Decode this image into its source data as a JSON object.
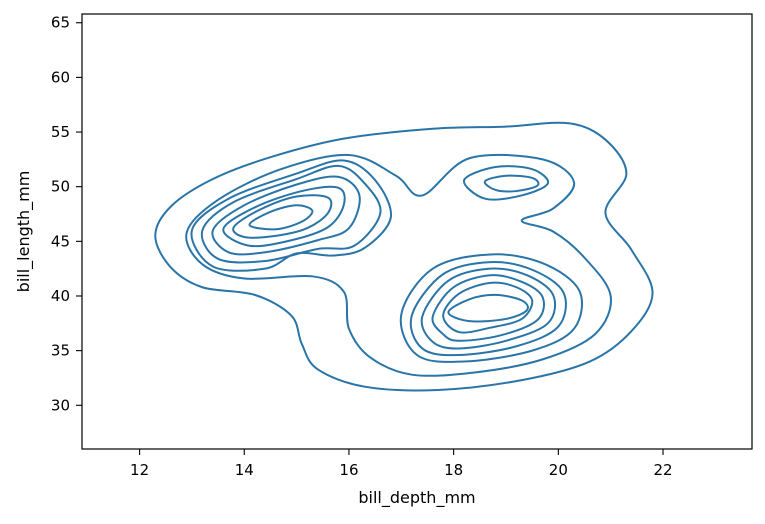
{
  "chart_data": {
    "type": "contour",
    "title": "",
    "xlabel": "bill_depth_mm",
    "ylabel": "bill_length_mm",
    "xlim": [
      10.9,
      23.7
    ],
    "ylim": [
      26.0,
      65.8
    ],
    "xticks": [
      12,
      14,
      16,
      18,
      20,
      22
    ],
    "yticks": [
      30,
      35,
      40,
      45,
      50,
      55,
      60,
      65
    ],
    "grid": false,
    "legend": "none",
    "line_color": "#2a75a8",
    "contours": [
      {
        "level": 1,
        "points": [
          [
            12.3,
            45.5
          ],
          [
            12.6,
            48.2
          ],
          [
            13.4,
            50.7
          ],
          [
            14.5,
            52.7
          ],
          [
            15.9,
            54.4
          ],
          [
            17.6,
            55.3
          ],
          [
            19.0,
            55.5
          ],
          [
            20.2,
            55.8
          ],
          [
            20.9,
            54.3
          ],
          [
            21.3,
            51.2
          ],
          [
            20.9,
            47.6
          ],
          [
            21.4,
            44.2
          ],
          [
            21.8,
            40.3
          ],
          [
            21.4,
            36.8
          ],
          [
            20.6,
            34.0
          ],
          [
            19.3,
            32.3
          ],
          [
            17.7,
            31.4
          ],
          [
            16.3,
            31.7
          ],
          [
            15.4,
            33.3
          ],
          [
            15.1,
            35.6
          ],
          [
            14.9,
            38.2
          ],
          [
            14.2,
            40.1
          ],
          [
            13.2,
            40.8
          ],
          [
            12.6,
            42.6
          ]
        ]
      },
      {
        "level": 2,
        "points": [
          [
            12.9,
            45.8
          ],
          [
            13.5,
            48.8
          ],
          [
            14.7,
            51.6
          ],
          [
            16.0,
            52.9
          ],
          [
            16.9,
            51.0
          ],
          [
            17.4,
            49.2
          ],
          [
            18.3,
            52.6
          ],
          [
            19.7,
            52.5
          ],
          [
            20.3,
            50.4
          ],
          [
            19.9,
            48.0
          ],
          [
            19.3,
            46.9
          ],
          [
            19.9,
            45.9
          ],
          [
            20.5,
            43.5
          ],
          [
            21.0,
            40.0
          ],
          [
            20.7,
            36.5
          ],
          [
            19.7,
            34.2
          ],
          [
            18.4,
            33.0
          ],
          [
            17.2,
            32.8
          ],
          [
            16.4,
            34.4
          ],
          [
            16.0,
            37.0
          ],
          [
            15.9,
            40.4
          ],
          [
            15.3,
            41.8
          ],
          [
            14.0,
            41.6
          ],
          [
            13.2,
            42.9
          ]
        ]
      },
      {
        "level": 3,
        "points": [
          [
            13.0,
            46.0
          ],
          [
            13.7,
            48.9
          ],
          [
            15.0,
            51.2
          ],
          [
            15.9,
            52.4
          ],
          [
            16.5,
            50.6
          ],
          [
            16.8,
            47.2
          ],
          [
            16.3,
            44.4
          ],
          [
            15.7,
            43.7
          ],
          [
            15.0,
            43.9
          ],
          [
            14.4,
            42.5
          ],
          [
            13.4,
            42.7
          ]
        ]
      },
      {
        "level": 3,
        "points": [
          [
            18.2,
            50.6
          ],
          [
            18.8,
            51.8
          ],
          [
            19.5,
            51.6
          ],
          [
            19.8,
            50.3
          ],
          [
            19.3,
            49.2
          ],
          [
            18.6,
            48.9
          ]
        ]
      },
      {
        "level": 3,
        "points": [
          [
            17.0,
            38.3
          ],
          [
            17.6,
            42.5
          ],
          [
            18.7,
            43.8
          ],
          [
            19.7,
            43.0
          ],
          [
            20.4,
            40.5
          ],
          [
            20.3,
            37.0
          ],
          [
            19.5,
            35.0
          ],
          [
            18.2,
            34.0
          ],
          [
            17.3,
            34.6
          ]
        ]
      },
      {
        "level": 4,
        "points": [
          [
            13.2,
            46.0
          ],
          [
            13.8,
            48.6
          ],
          [
            15.0,
            50.7
          ],
          [
            15.8,
            51.9
          ],
          [
            16.3,
            50.3
          ],
          [
            16.6,
            47.6
          ],
          [
            16.1,
            44.6
          ],
          [
            15.4,
            44.3
          ],
          [
            14.4,
            43.2
          ],
          [
            13.5,
            43.4
          ]
        ]
      },
      {
        "level": 4,
        "points": [
          [
            18.6,
            50.5
          ],
          [
            19.0,
            51.0
          ],
          [
            19.5,
            50.8
          ],
          [
            19.6,
            50.1
          ],
          [
            19.2,
            49.6
          ],
          [
            18.8,
            49.7
          ]
        ]
      },
      {
        "level": 4,
        "points": [
          [
            17.2,
            38.2
          ],
          [
            17.8,
            42.0
          ],
          [
            18.7,
            43.1
          ],
          [
            19.5,
            42.4
          ],
          [
            20.1,
            40.3
          ],
          [
            20.0,
            37.2
          ],
          [
            19.2,
            35.4
          ],
          [
            18.1,
            34.6
          ],
          [
            17.4,
            35.2
          ]
        ]
      },
      {
        "level": 5,
        "points": [
          [
            13.4,
            46.0
          ],
          [
            14.0,
            48.3
          ],
          [
            15.0,
            50.2
          ],
          [
            15.8,
            50.9
          ],
          [
            16.2,
            49.2
          ],
          [
            16.0,
            46.2
          ],
          [
            15.4,
            45.1
          ],
          [
            14.4,
            44.0
          ],
          [
            13.7,
            44.0
          ]
        ]
      },
      {
        "level": 5,
        "points": [
          [
            17.4,
            38.1
          ],
          [
            17.9,
            41.4
          ],
          [
            18.7,
            42.5
          ],
          [
            19.4,
            41.9
          ],
          [
            19.9,
            40.1
          ],
          [
            19.8,
            37.5
          ],
          [
            19.0,
            35.9
          ],
          [
            18.1,
            35.2
          ],
          [
            17.6,
            35.8
          ]
        ]
      },
      {
        "level": 6,
        "points": [
          [
            13.6,
            46.1
          ],
          [
            14.2,
            48.1
          ],
          [
            15.1,
            49.6
          ],
          [
            15.8,
            49.9
          ],
          [
            15.9,
            48.3
          ],
          [
            15.6,
            46.3
          ],
          [
            14.9,
            45.1
          ],
          [
            14.1,
            44.6
          ]
        ]
      },
      {
        "level": 6,
        "points": [
          [
            17.6,
            38.1
          ],
          [
            18.0,
            40.8
          ],
          [
            18.7,
            41.9
          ],
          [
            19.3,
            41.3
          ],
          [
            19.7,
            39.9
          ],
          [
            19.6,
            37.8
          ],
          [
            18.9,
            36.4
          ],
          [
            18.1,
            35.9
          ],
          [
            17.8,
            36.5
          ]
        ]
      },
      {
        "level": 7,
        "points": [
          [
            13.8,
            46.3
          ],
          [
            14.3,
            47.9
          ],
          [
            15.0,
            49.1
          ],
          [
            15.6,
            49.0
          ],
          [
            15.6,
            47.6
          ],
          [
            15.2,
            46.2
          ],
          [
            14.6,
            45.5
          ],
          [
            14.0,
            45.4
          ]
        ]
      },
      {
        "level": 7,
        "points": [
          [
            17.8,
            38.2
          ],
          [
            18.1,
            40.2
          ],
          [
            18.7,
            41.2
          ],
          [
            19.2,
            40.8
          ],
          [
            19.5,
            39.6
          ],
          [
            19.3,
            37.9
          ],
          [
            18.7,
            37.1
          ],
          [
            18.1,
            36.7
          ]
        ]
      },
      {
        "level": 8,
        "points": [
          [
            14.1,
            46.5
          ],
          [
            14.5,
            47.7
          ],
          [
            15.0,
            48.3
          ],
          [
            15.3,
            47.8
          ],
          [
            15.1,
            46.8
          ],
          [
            14.6,
            46.1
          ]
        ]
      },
      {
        "level": 8,
        "points": [
          [
            17.9,
            38.5
          ],
          [
            18.3,
            39.7
          ],
          [
            18.8,
            40.1
          ],
          [
            19.3,
            39.6
          ],
          [
            19.4,
            38.7
          ],
          [
            19.0,
            37.9
          ],
          [
            18.3,
            37.7
          ]
        ]
      }
    ]
  }
}
